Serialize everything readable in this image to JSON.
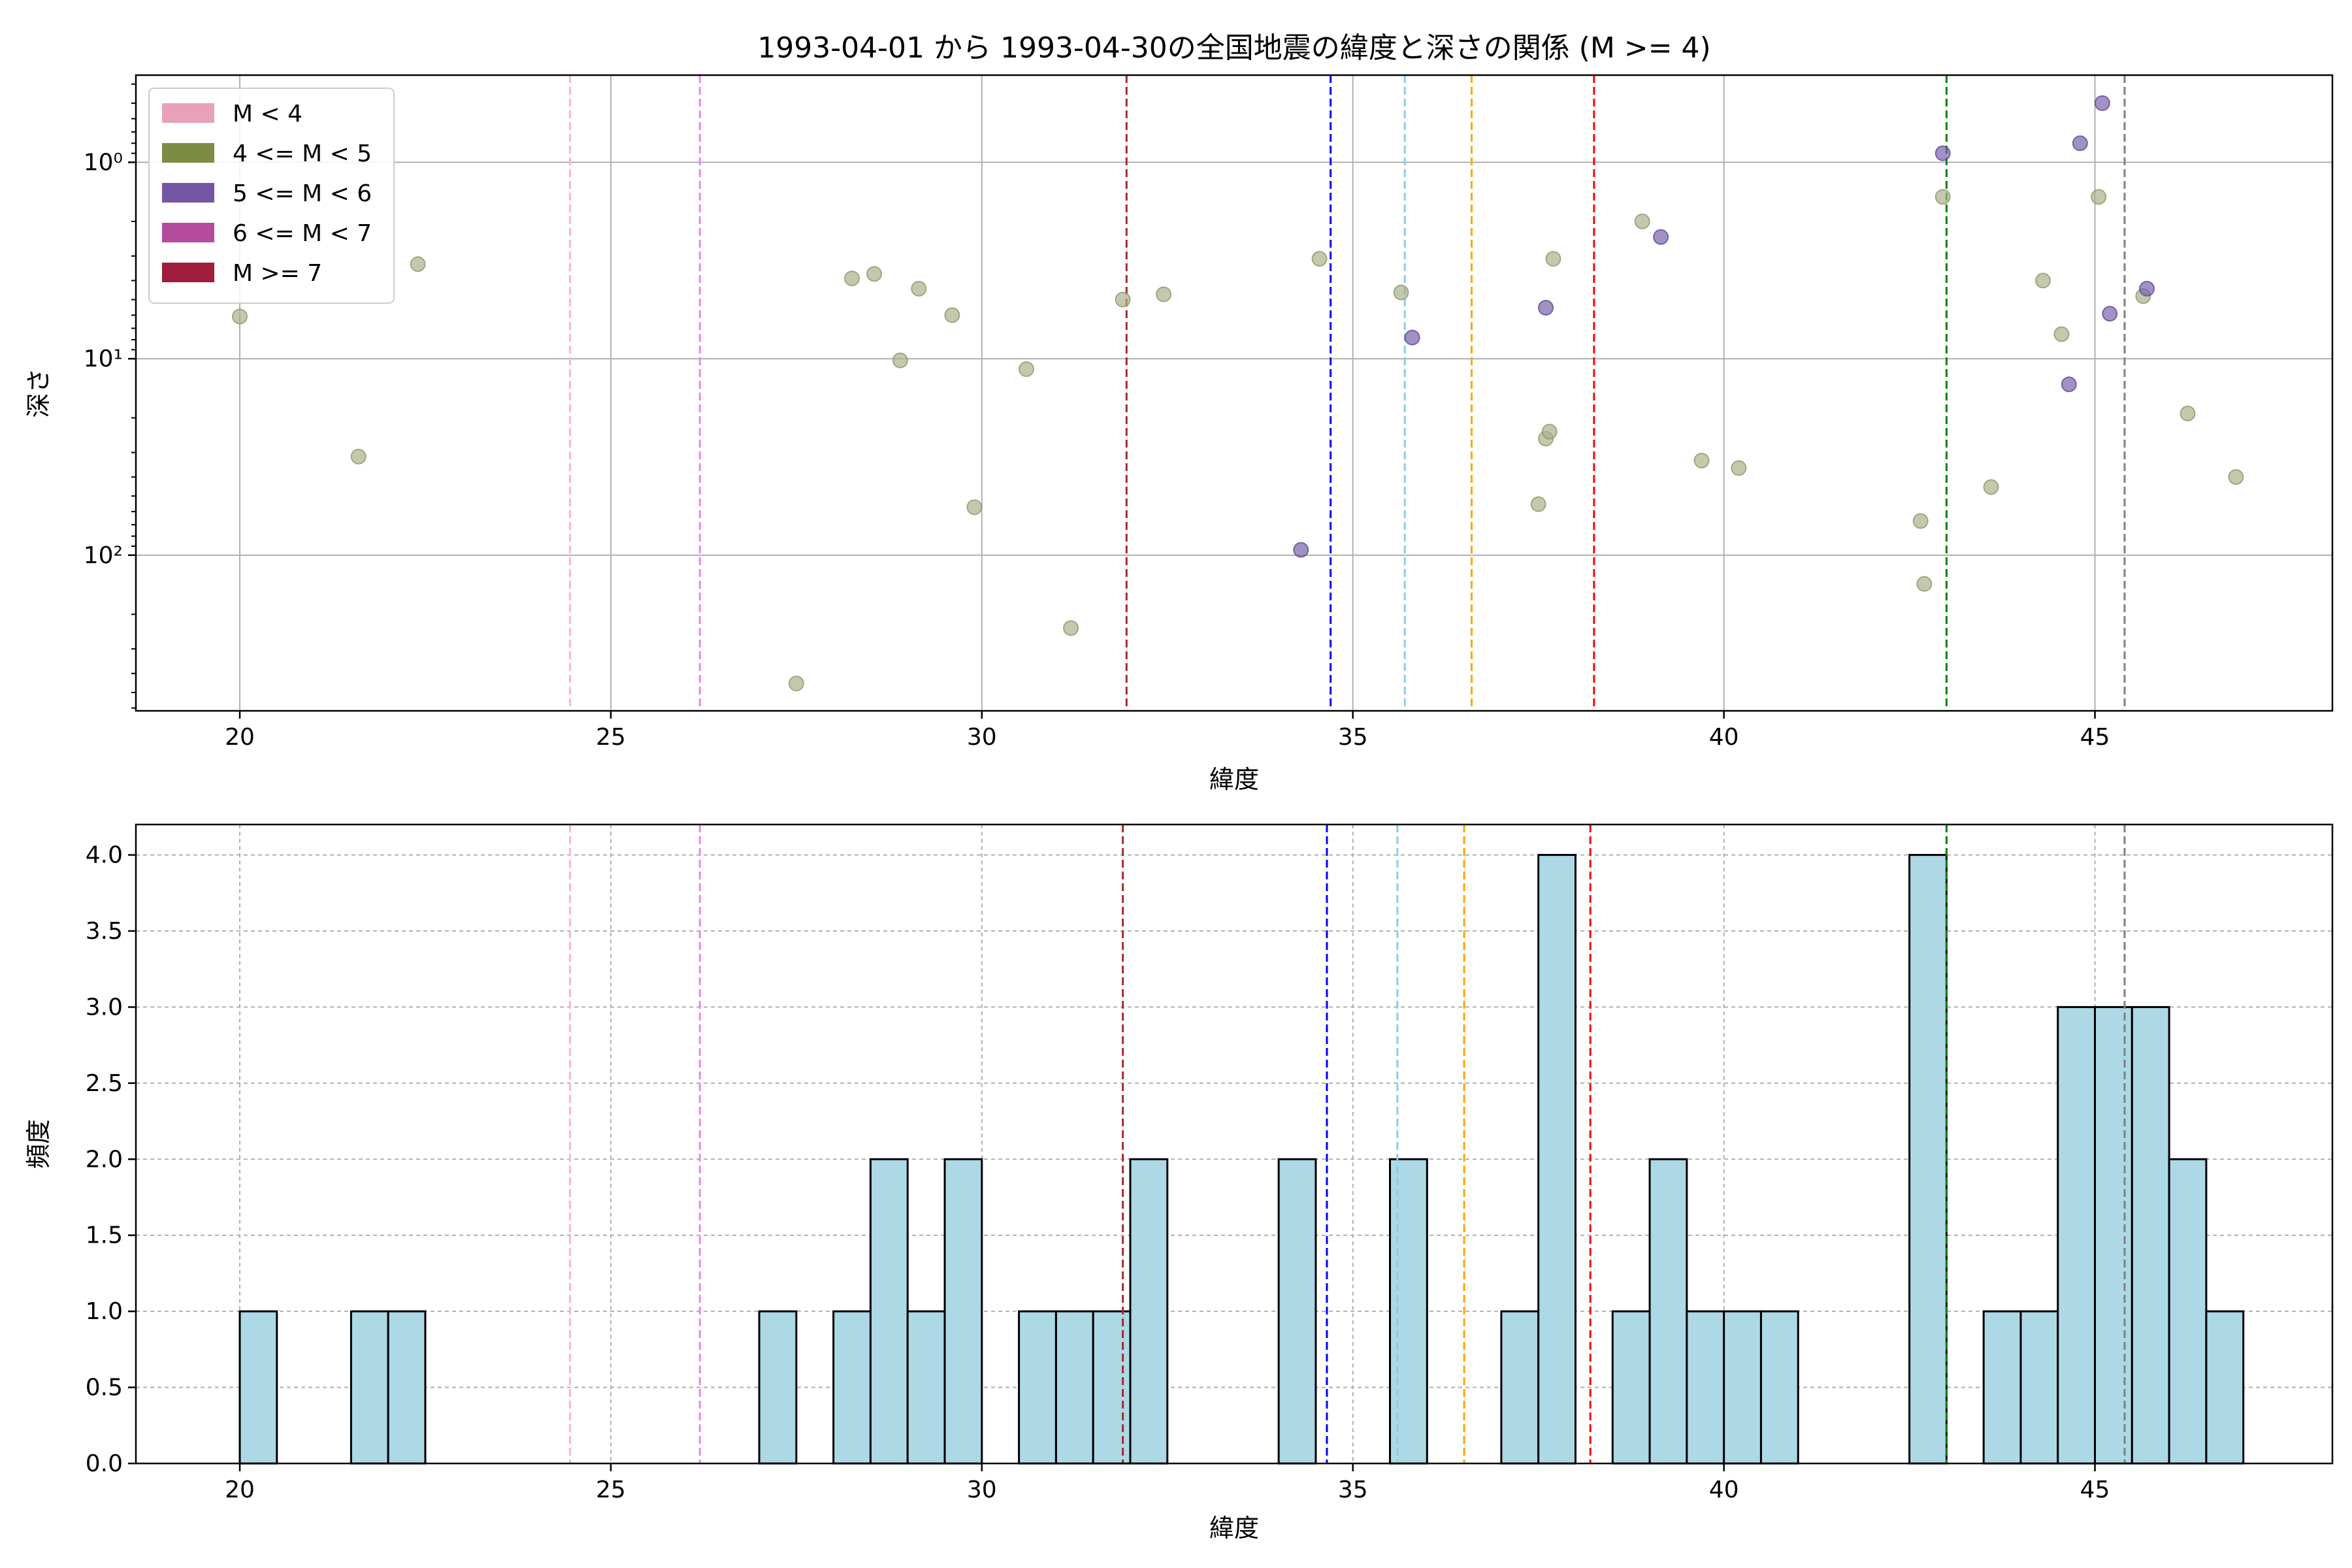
{
  "chart_data": [
    {
      "type": "scatter",
      "title": "1993-04-01 から 1993-04-30の全国地震の緯度と深さの関係 (M >= 4)",
      "xlabel": "緯度",
      "ylabel": "深さ",
      "xlim": [
        18.6,
        48.2
      ],
      "ylim": [
        620,
        0.36
      ],
      "yscale": "log",
      "yaxis_inverted": true,
      "grid": true,
      "xticks": [
        "20",
        "25",
        "30",
        "35",
        "40",
        "45"
      ],
      "xtick_values": [
        20,
        25,
        30,
        35,
        40,
        45
      ],
      "yticks": [
        "10⁰",
        "10¹",
        "10²"
      ],
      "ytick_values": [
        1,
        10,
        100
      ],
      "legend": {
        "placement": "top-left",
        "entries": [
          {
            "label": "M < 4",
            "color": "#e8a0bb"
          },
          {
            "label": "4 <= M < 5",
            "color": "#7d8b44"
          },
          {
            "label": "5 <= M < 6",
            "color": "#7357a4"
          },
          {
            "label": "6 <= M < 7",
            "color": "#b54b9d"
          },
          {
            "label": "M >= 7",
            "color": "#a01d3c"
          }
        ]
      },
      "series": [
        {
          "name": "4 <= M < 5",
          "color": "#7d8b44",
          "points": [
            [
              20.0,
              6.1
            ],
            [
              21.6,
              31.5
            ],
            [
              22.4,
              3.3
            ],
            [
              27.5,
              450
            ],
            [
              28.25,
              3.9
            ],
            [
              28.55,
              3.7
            ],
            [
              28.9,
              10.2
            ],
            [
              29.15,
              4.4
            ],
            [
              29.6,
              6.0
            ],
            [
              29.9,
              57
            ],
            [
              30.6,
              11.3
            ],
            [
              31.2,
              235
            ],
            [
              31.9,
              5.0
            ],
            [
              32.45,
              4.7
            ],
            [
              34.55,
              3.1
            ],
            [
              35.65,
              4.6
            ],
            [
              37.5,
              55
            ],
            [
              37.6,
              25.5
            ],
            [
              37.65,
              23.5
            ],
            [
              37.7,
              3.1
            ],
            [
              38.9,
              2.0
            ],
            [
              39.7,
              33
            ],
            [
              40.2,
              36
            ],
            [
              42.65,
              67
            ],
            [
              42.7,
              140
            ],
            [
              42.95,
              1.5
            ],
            [
              43.6,
              45
            ],
            [
              44.3,
              4.0
            ],
            [
              44.55,
              7.5
            ],
            [
              45.05,
              1.5
            ],
            [
              45.65,
              4.8
            ],
            [
              46.25,
              19
            ],
            [
              46.9,
              40
            ]
          ]
        },
        {
          "name": "5 <= M < 6",
          "color": "#7357a4",
          "points": [
            [
              34.3,
              94
            ],
            [
              35.8,
              7.8
            ],
            [
              37.6,
              5.5
            ],
            [
              39.15,
              2.4
            ],
            [
              42.95,
              0.9
            ],
            [
              44.65,
              13.5
            ],
            [
              44.8,
              0.8
            ],
            [
              45.1,
              0.5
            ],
            [
              45.2,
              5.9
            ],
            [
              45.7,
              4.4
            ]
          ]
        }
      ],
      "reference_lines": [
        {
          "x": 24.45,
          "color": "pink"
        },
        {
          "x": 26.2,
          "color": "violet"
        },
        {
          "x": 31.95,
          "color": "brown"
        },
        {
          "x": 34.7,
          "color": "blue"
        },
        {
          "x": 35.7,
          "color": "skyblue"
        },
        {
          "x": 36.6,
          "color": "orange"
        },
        {
          "x": 38.25,
          "color": "red"
        },
        {
          "x": 43.0,
          "color": "green"
        },
        {
          "x": 45.4,
          "color": "gray"
        }
      ]
    },
    {
      "type": "bar",
      "title": "",
      "xlabel": "緯度",
      "ylabel": "頻度",
      "xlim": [
        18.6,
        48.2
      ],
      "ylim": [
        0,
        4.2
      ],
      "grid": true,
      "bar_color": "lightblue",
      "bin_width": 0.5,
      "xticks": [
        "20",
        "25",
        "30",
        "35",
        "40",
        "45"
      ],
      "xtick_values": [
        20,
        25,
        30,
        35,
        40,
        45
      ],
      "yticks": [
        "0.0",
        "0.5",
        "1.0",
        "1.5",
        "2.0",
        "2.5",
        "3.0",
        "3.5",
        "4.0"
      ],
      "ytick_values": [
        0,
        0.5,
        1,
        1.5,
        2,
        2.5,
        3,
        3.5,
        4
      ],
      "bins": [
        {
          "x": 20.0,
          "count": 1
        },
        {
          "x": 21.5,
          "count": 1
        },
        {
          "x": 22.0,
          "count": 1
        },
        {
          "x": 27.0,
          "count": 1
        },
        {
          "x": 28.0,
          "count": 1
        },
        {
          "x": 28.5,
          "count": 2
        },
        {
          "x": 29.0,
          "count": 1
        },
        {
          "x": 29.5,
          "count": 2
        },
        {
          "x": 30.5,
          "count": 1
        },
        {
          "x": 31.0,
          "count": 1
        },
        {
          "x": 31.5,
          "count": 1
        },
        {
          "x": 32.0,
          "count": 2
        },
        {
          "x": 34.0,
          "count": 2
        },
        {
          "x": 35.5,
          "count": 2
        },
        {
          "x": 37.0,
          "count": 1
        },
        {
          "x": 37.5,
          "count": 4
        },
        {
          "x": 38.5,
          "count": 1
        },
        {
          "x": 39.0,
          "count": 2
        },
        {
          "x": 39.5,
          "count": 1
        },
        {
          "x": 40.0,
          "count": 1
        },
        {
          "x": 40.5,
          "count": 1
        },
        {
          "x": 42.5,
          "count": 4
        },
        {
          "x": 43.5,
          "count": 1
        },
        {
          "x": 44.0,
          "count": 1
        },
        {
          "x": 44.5,
          "count": 3
        },
        {
          "x": 45.0,
          "count": 3
        },
        {
          "x": 45.5,
          "count": 3
        },
        {
          "x": 46.0,
          "count": 2
        },
        {
          "x": 46.5,
          "count": 1
        }
      ],
      "reference_lines": [
        {
          "x": 24.45,
          "color": "pink"
        },
        {
          "x": 26.2,
          "color": "violet"
        },
        {
          "x": 31.9,
          "color": "brown"
        },
        {
          "x": 34.65,
          "color": "blue"
        },
        {
          "x": 35.6,
          "color": "skyblue"
        },
        {
          "x": 36.5,
          "color": "orange"
        },
        {
          "x": 38.2,
          "color": "red"
        },
        {
          "x": 43.0,
          "color": "green"
        },
        {
          "x": 45.4,
          "color": "gray"
        }
      ]
    }
  ]
}
